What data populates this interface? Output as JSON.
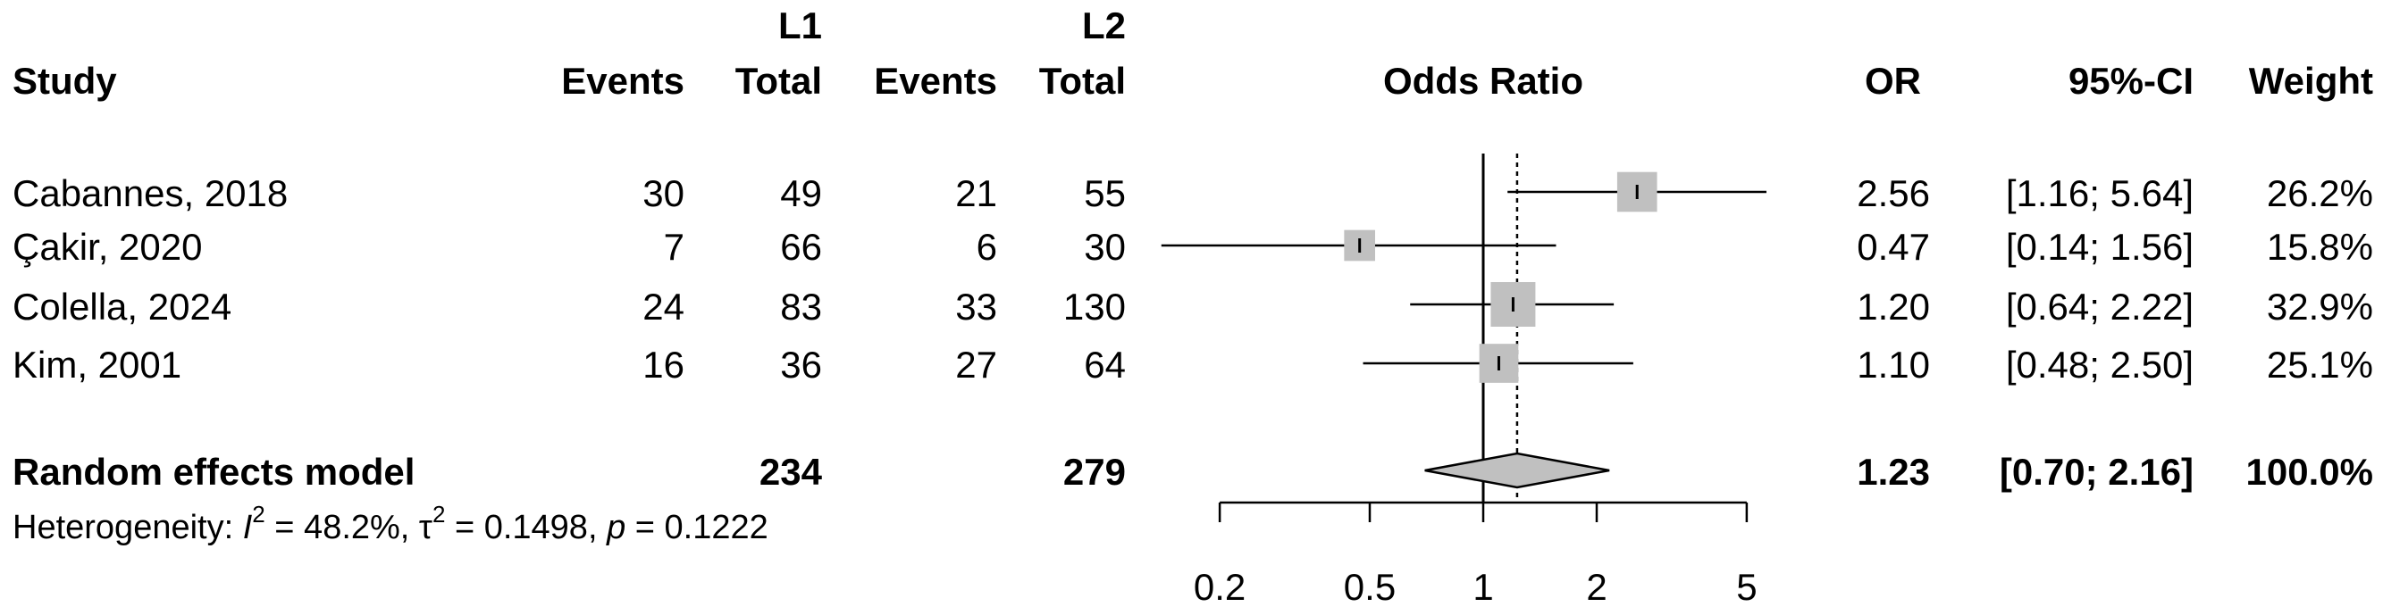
{
  "header": {
    "group1": "L1",
    "group2": "L2",
    "study": "Study",
    "events": "Events",
    "total": "Total",
    "odds_ratio": "Odds Ratio",
    "or": "OR",
    "ci": "95%-CI",
    "weight": "Weight"
  },
  "studies": [
    {
      "name": "Cabannes, 2018",
      "e1": "30",
      "n1": "49",
      "e2": "21",
      "n2": "55",
      "or_text": "2.56",
      "ci_text": "[1.16; 5.64]",
      "weight_text": "26.2%"
    },
    {
      "name": "Çakir, 2020",
      "e1": "7",
      "n1": "66",
      "e2": "6",
      "n2": "30",
      "or_text": "0.47",
      "ci_text": "[0.14; 1.56]",
      "weight_text": "15.8%"
    },
    {
      "name": "Colella, 2024",
      "e1": "24",
      "n1": "83",
      "e2": "33",
      "n2": "130",
      "or_text": "1.20",
      "ci_text": "[0.64; 2.22]",
      "weight_text": "32.9%"
    },
    {
      "name": "Kim, 2001",
      "e1": "16",
      "n1": "36",
      "e2": "27",
      "n2": "64",
      "or_text": "1.10",
      "ci_text": "[0.48; 2.50]",
      "weight_text": "25.1%"
    }
  ],
  "pooled": {
    "label": "Random effects model",
    "n1": "234",
    "n2": "279",
    "or_text": "1.23",
    "ci_text": "[0.70; 2.16]",
    "weight_text": "100.0%"
  },
  "heterogeneity": {
    "prefix": "Heterogeneity: ",
    "i_sym": "I",
    "sq1": "2",
    "i_val": " = 48.2%, ",
    "tau_sym": "τ",
    "sq2": "2",
    "tau_val": " = 0.1498, ",
    "p_sym": "p",
    "p_val": " = 0.1222"
  },
  "chart_data": {
    "type": "forest",
    "scale": "log",
    "x_ticks": [
      0.2,
      0.5,
      1,
      2,
      5
    ],
    "x_tick_labels": [
      "0.2",
      "0.5",
      "1",
      "2",
      "5"
    ],
    "null_line": 1,
    "pooled_line": 1.23,
    "studies": [
      {
        "name": "Cabannes, 2018",
        "or": 2.56,
        "lower": 1.16,
        "upper": 5.64,
        "weight": 26.2
      },
      {
        "name": "Çakir, 2020",
        "or": 0.47,
        "lower": 0.14,
        "upper": 1.56,
        "weight": 15.8
      },
      {
        "name": "Colella, 2024",
        "or": 1.2,
        "lower": 0.64,
        "upper": 2.22,
        "weight": 32.9
      },
      {
        "name": "Kim, 2001",
        "or": 1.1,
        "lower": 0.48,
        "upper": 2.5,
        "weight": 25.1
      }
    ],
    "pooled": {
      "or": 1.23,
      "lower": 0.7,
      "upper": 2.16
    },
    "colors": {
      "box": "#c0c0c0",
      "diamond": "#c0c0c0",
      "line": "#000000"
    }
  }
}
